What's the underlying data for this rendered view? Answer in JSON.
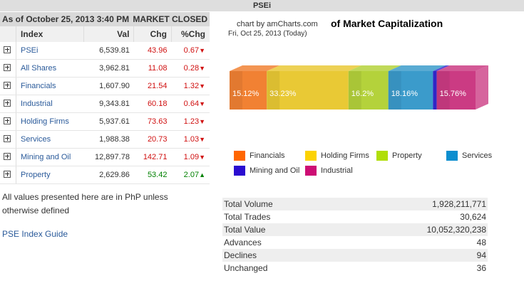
{
  "title": "PSEi",
  "asof": "As of October 25, 2013 3:40 PM",
  "market_status": "MARKET CLOSED",
  "table": {
    "headers": [
      "Index",
      "Val",
      "Chg",
      "%Chg"
    ],
    "rows": [
      {
        "index": "PSEi",
        "val": "6,539.81",
        "chg": "43.96",
        "pct": "0.67",
        "dir": "down"
      },
      {
        "index": "All Shares",
        "val": "3,962.81",
        "chg": "11.08",
        "pct": "0.28",
        "dir": "down"
      },
      {
        "index": "Financials",
        "val": "1,607.90",
        "chg": "21.54",
        "pct": "1.32",
        "dir": "down"
      },
      {
        "index": "Industrial",
        "val": "9,343.81",
        "chg": "60.18",
        "pct": "0.64",
        "dir": "down"
      },
      {
        "index": "Holding Firms",
        "val": "5,937.61",
        "chg": "73.63",
        "pct": "1.23",
        "dir": "down"
      },
      {
        "index": "Services",
        "val": "1,988.38",
        "chg": "20.73",
        "pct": "1.03",
        "dir": "down"
      },
      {
        "index": "Mining and Oil",
        "val": "12,897.78",
        "chg": "142.71",
        "pct": "1.09",
        "dir": "down"
      },
      {
        "index": "Property",
        "val": "2,629.86",
        "chg": "53.42",
        "pct": "2.07",
        "dir": "up"
      }
    ]
  },
  "note": "All values presented here are in PhP unless otherwise defined",
  "guide_link": "PSE Index Guide",
  "chart": {
    "credit": "chart by amCharts.com",
    "title": "of Market Capitalization",
    "date": "Fri, Oct 25, 2013 (Today)"
  },
  "chart_data": {
    "type": "bar",
    "stacked": "100%",
    "segments": [
      {
        "name": "Financials",
        "value": 15.12,
        "label": "15.12%",
        "color": "#f07a28"
      },
      {
        "name": "Holding Firms",
        "value": 33.23,
        "label": "33.23%",
        "color": "#e8c62a"
      },
      {
        "name": "Property",
        "value": 16.2,
        "label": "16.2%",
        "color": "#b0d030"
      },
      {
        "name": "Services",
        "value": 18.16,
        "label": "18.16%",
        "color": "#3096c8"
      },
      {
        "name": "Mining and Oil",
        "value": 1.53,
        "label": "",
        "color": "#2a1ed0"
      },
      {
        "name": "Industrial",
        "value": 15.76,
        "label": "15.76%",
        "color": "#c8307c"
      }
    ],
    "legend": [
      {
        "name": "Financials",
        "color": "#ff6600"
      },
      {
        "name": "Holding Firms",
        "color": "#fcd202"
      },
      {
        "name": "Property",
        "color": "#b0de09"
      },
      {
        "name": "Services",
        "color": "#0d8ecf"
      },
      {
        "name": "Mining and Oil",
        "color": "#2a0cd0"
      },
      {
        "name": "Industrial",
        "color": "#cd0d74"
      }
    ],
    "legend_placement": "bottom"
  },
  "stats": [
    {
      "label": "Total Volume",
      "value": "1,928,211,771"
    },
    {
      "label": "Total Trades",
      "value": "30,624"
    },
    {
      "label": "Total Value",
      "value": "10,052,320,238"
    },
    {
      "label": "Advances",
      "value": "48"
    },
    {
      "label": "Declines",
      "value": "94"
    },
    {
      "label": "Unchanged",
      "value": "36"
    }
  ]
}
